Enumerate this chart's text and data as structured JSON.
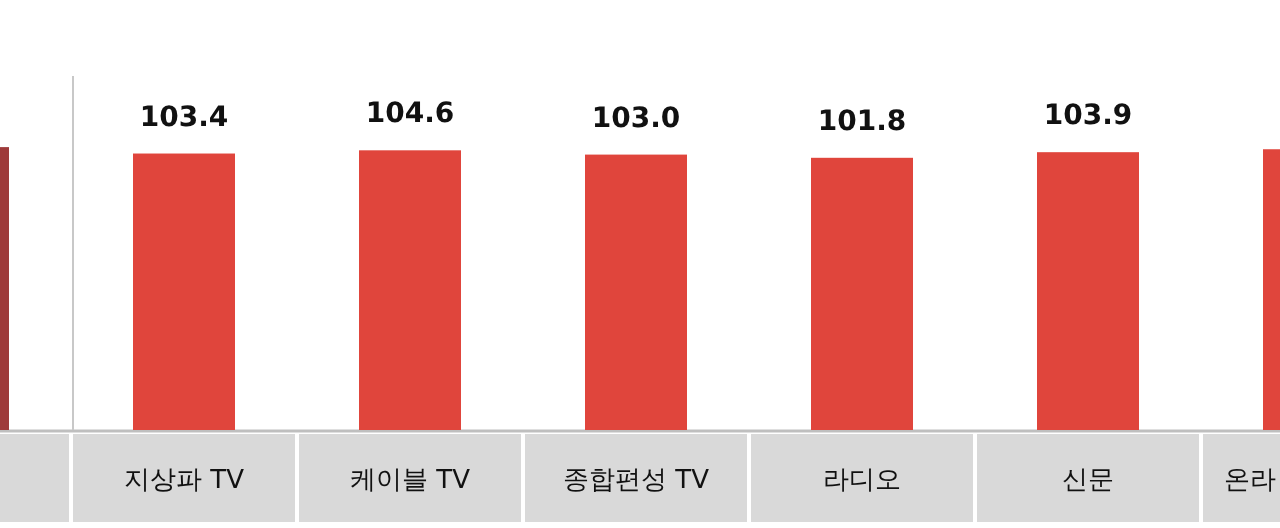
{
  "chart_data": {
    "type": "bar",
    "categories": [
      null,
      "지상파 TV",
      "케이블 TV",
      "종합편성 TV",
      "라디오",
      "신문",
      "온라"
    ],
    "values": [
      105.8,
      103.4,
      104.6,
      103.0,
      101.8,
      103.9,
      105.0
    ],
    "colors": [
      "#9e3a3a",
      "#e0453c",
      "#e0453c",
      "#e0453c",
      "#e0453c",
      "#e0453c",
      "#e0453c"
    ],
    "value_labels": [
      null,
      "103.4",
      "104.6",
      "103.0",
      "101.8",
      "103.9",
      null
    ]
  }
}
